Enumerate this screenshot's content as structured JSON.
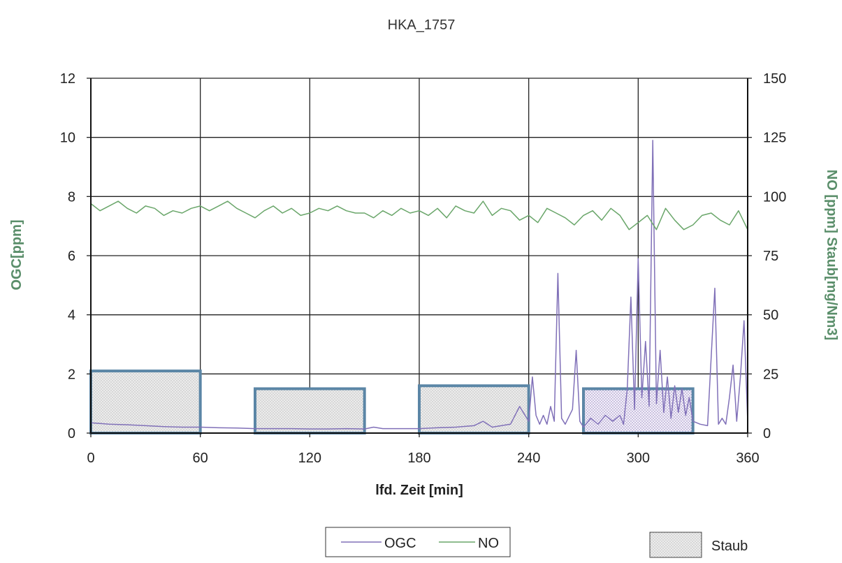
{
  "chart_data": {
    "type": "line",
    "title": "HKA_1757",
    "xlabel": "lfd. Zeit [min]",
    "ylabel_left": "OGC[ppm]",
    "ylabel_right": "NO [ppm]  Staub[mg/Nm3]",
    "xlim": [
      0,
      360
    ],
    "ylim_left": [
      0,
      12
    ],
    "ylim_right": [
      0,
      150
    ],
    "x_ticks": [
      "0",
      "60",
      "120",
      "180",
      "240",
      "300",
      "360"
    ],
    "y_left_ticks": [
      "0",
      "2",
      "4",
      "6",
      "8",
      "10",
      "12"
    ],
    "y_right_ticks": [
      "0",
      "25",
      "50",
      "75",
      "100",
      "125",
      "150"
    ],
    "grid": true,
    "legend_position": "bottom",
    "colors": {
      "ogc": "#8070b8",
      "no": "#6aa66a",
      "staub_border": "#5b86a6",
      "staub_fill": "#e6e6e6",
      "axis_title_left": "#5a8e6a",
      "axis_title_right": "#5a8e6a",
      "grid": "#222222"
    },
    "series": [
      {
        "name": "OGC",
        "axis": "left",
        "x": [
          0,
          10,
          20,
          30,
          40,
          50,
          60,
          70,
          80,
          90,
          100,
          110,
          120,
          130,
          140,
          150,
          155,
          160,
          170,
          180,
          190,
          200,
          210,
          215,
          220,
          230,
          235,
          240,
          242,
          244,
          246,
          248,
          250,
          252,
          254,
          256,
          258,
          260,
          264,
          266,
          268,
          270,
          274,
          278,
          282,
          286,
          290,
          292,
          294,
          296,
          298,
          300,
          302,
          304,
          306,
          308,
          310,
          312,
          314,
          316,
          318,
          320,
          322,
          324,
          326,
          328,
          330,
          334,
          338,
          342,
          344,
          346,
          348,
          350,
          352,
          354,
          356,
          358,
          360
        ],
        "y": [
          0.35,
          0.3,
          0.28,
          0.25,
          0.22,
          0.2,
          0.2,
          0.18,
          0.17,
          0.15,
          0.15,
          0.15,
          0.14,
          0.14,
          0.15,
          0.14,
          0.2,
          0.15,
          0.15,
          0.15,
          0.18,
          0.2,
          0.25,
          0.4,
          0.2,
          0.3,
          0.9,
          0.4,
          1.9,
          0.6,
          0.3,
          0.6,
          0.3,
          0.9,
          0.4,
          5.4,
          0.5,
          0.3,
          0.8,
          2.8,
          0.4,
          0.2,
          0.5,
          0.3,
          0.6,
          0.4,
          0.6,
          0.3,
          1.5,
          4.6,
          0.8,
          5.9,
          1.2,
          3.1,
          0.9,
          9.9,
          1.0,
          2.8,
          0.7,
          1.9,
          0.5,
          1.6,
          0.7,
          1.5,
          0.6,
          1.2,
          0.4,
          0.3,
          0.25,
          4.9,
          0.3,
          0.5,
          0.3,
          1.2,
          2.3,
          0.4,
          1.9,
          3.8,
          0.4
        ]
      },
      {
        "name": "NO",
        "axis": "right",
        "x": [
          0,
          5,
          10,
          15,
          20,
          25,
          30,
          35,
          40,
          45,
          50,
          55,
          60,
          65,
          70,
          75,
          80,
          85,
          90,
          95,
          100,
          105,
          110,
          115,
          120,
          125,
          130,
          135,
          140,
          145,
          150,
          155,
          160,
          165,
          170,
          175,
          180,
          185,
          190,
          195,
          200,
          205,
          210,
          215,
          220,
          225,
          230,
          235,
          240,
          245,
          250,
          255,
          260,
          265,
          270,
          275,
          280,
          285,
          290,
          295,
          300,
          305,
          310,
          315,
          320,
          325,
          330,
          335,
          340,
          345,
          350,
          355,
          360
        ],
        "y": [
          97,
          94,
          96,
          98,
          95,
          93,
          96,
          95,
          92,
          94,
          93,
          95,
          96,
          94,
          96,
          98,
          95,
          93,
          91,
          94,
          96,
          93,
          95,
          92,
          93,
          95,
          94,
          96,
          94,
          93,
          93,
          91,
          94,
          92,
          95,
          93,
          94,
          92,
          95,
          91,
          96,
          94,
          93,
          98,
          92,
          95,
          94,
          90,
          92,
          89,
          95,
          93,
          91,
          88,
          92,
          94,
          90,
          95,
          92,
          86,
          89,
          92,
          86,
          95,
          90,
          86,
          88,
          92,
          93,
          90,
          88,
          94,
          86
        ]
      }
    ],
    "staub_areas": {
      "name": "Staub",
      "axis": "left",
      "intervals": [
        {
          "x0": 0,
          "x1": 60,
          "value": 2.1
        },
        {
          "x0": 90,
          "x1": 150,
          "value": 1.5
        },
        {
          "x0": 180,
          "x1": 240,
          "value": 1.6
        },
        {
          "x0": 270,
          "x1": 330,
          "value": 1.5
        }
      ]
    },
    "legend": [
      {
        "label": "OGC"
      },
      {
        "label": "NO"
      },
      {
        "label": "Staub"
      }
    ]
  }
}
